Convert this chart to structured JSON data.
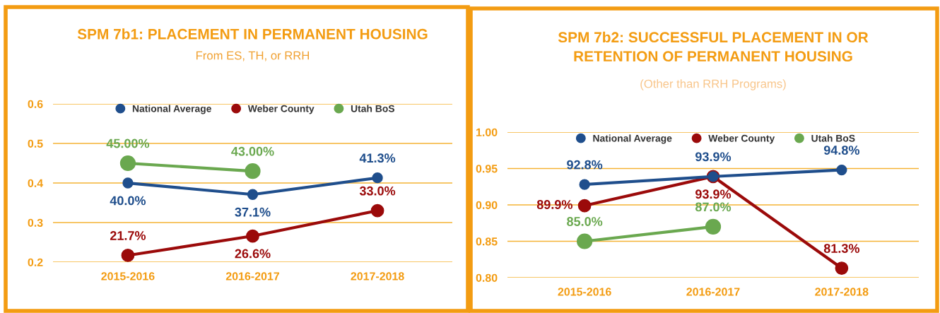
{
  "chart_data": [
    {
      "type": "line",
      "title": "SPM 7b1: PLACEMENT IN PERMANENT HOUSING",
      "subtitle": "From ES, TH, or RRH",
      "categories": [
        "2015-2016",
        "2016-2017",
        "2017-2018"
      ],
      "ylim": [
        0.2,
        0.6
      ],
      "yticks": [
        0.2,
        0.3,
        0.4,
        0.5,
        0.6
      ],
      "grid": "y",
      "legend": "top",
      "marker": "circle",
      "line_style": "solid",
      "series": [
        {
          "name": "National Average",
          "color": "#1f4e8c",
          "values": [
            0.4,
            0.371,
            0.413
          ],
          "value_labels": [
            "40.0%",
            "37.1%",
            "41.3%"
          ]
        },
        {
          "name": "Weber County",
          "color": "#9b0a0a",
          "values": [
            0.217,
            0.266,
            0.33
          ],
          "value_labels": [
            "21.7%",
            "26.6%",
            "33.0%"
          ]
        },
        {
          "name": "Utah BoS",
          "color": "#6aa84f",
          "values": [
            0.45,
            0.43,
            null
          ],
          "value_labels": [
            "45.00%",
            "43.00%",
            null
          ]
        }
      ]
    },
    {
      "type": "line",
      "title": "SPM 7b2: SUCCESSFUL PLACEMENT IN OR\nRETENTION OF PERMANENT HOUSING",
      "subtitle": "(Other than RRH Programs)",
      "categories": [
        "2015-2016",
        "2016-2017",
        "2017-2018"
      ],
      "ylim": [
        0.8,
        1.0
      ],
      "yticks": [
        {
          "value": 0.8,
          "label": "0.80"
        },
        {
          "value": 0.85,
          "label": "0.85"
        },
        {
          "value": 0.9,
          "label": "0.90"
        },
        {
          "value": 0.95,
          "label": "0.95"
        },
        {
          "value": 1.0,
          "label": "1.00"
        }
      ],
      "grid": "y",
      "legend": "top",
      "marker": "circle",
      "line_style": "solid",
      "series": [
        {
          "name": "National Average",
          "color": "#1f4e8c",
          "values": [
            0.928,
            0.939,
            0.948
          ],
          "value_labels": [
            "92.8%",
            "93.9%",
            "94.8%"
          ]
        },
        {
          "name": "Weber County",
          "color": "#9b0a0a",
          "values": [
            0.899,
            0.939,
            0.813
          ],
          "value_labels": [
            "89.9%",
            "93.9%",
            "81.3%"
          ]
        },
        {
          "name": "Utah BoS",
          "color": "#6aa84f",
          "values": [
            0.85,
            0.87,
            null
          ],
          "value_labels": [
            "85.0%",
            "87.0%",
            null
          ]
        }
      ]
    }
  ]
}
